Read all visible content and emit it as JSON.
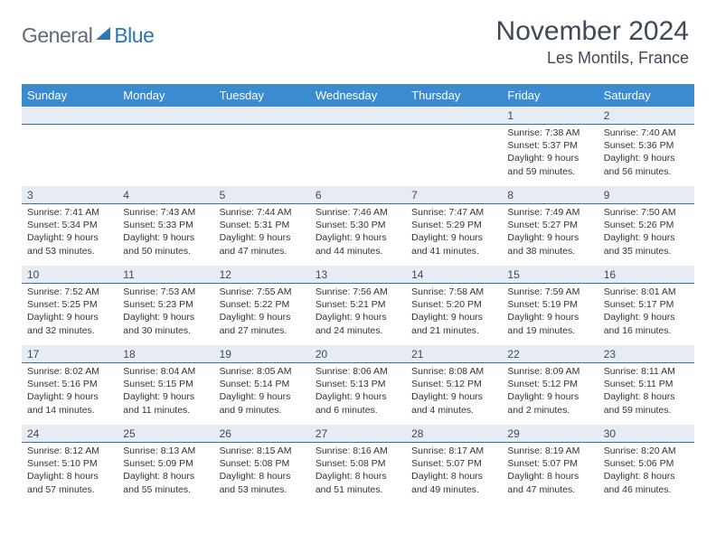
{
  "brand": {
    "text1": "General",
    "text2": "Blue",
    "text1_color": "#5d6a78",
    "text2_color": "#2e75b6",
    "icon_color": "#2e75b6"
  },
  "title": "November 2024",
  "location": "Les Montils, France",
  "colors": {
    "header_bg": "#3a8bd0",
    "header_text": "#ffffff",
    "daynum_bg": "#e6ecf2",
    "daynum_rule": "#3a6ea5",
    "body_text": "#333333",
    "title_color": "#3c4a5a",
    "page_bg": "#ffffff"
  },
  "weekdays": [
    "Sunday",
    "Monday",
    "Tuesday",
    "Wednesday",
    "Thursday",
    "Friday",
    "Saturday"
  ],
  "weeks": [
    [
      {
        "day": "",
        "lines": []
      },
      {
        "day": "",
        "lines": []
      },
      {
        "day": "",
        "lines": []
      },
      {
        "day": "",
        "lines": []
      },
      {
        "day": "",
        "lines": []
      },
      {
        "day": "1",
        "lines": [
          "Sunrise: 7:38 AM",
          "Sunset: 5:37 PM",
          "Daylight: 9 hours",
          "and 59 minutes."
        ]
      },
      {
        "day": "2",
        "lines": [
          "Sunrise: 7:40 AM",
          "Sunset: 5:36 PM",
          "Daylight: 9 hours",
          "and 56 minutes."
        ]
      }
    ],
    [
      {
        "day": "3",
        "lines": [
          "Sunrise: 7:41 AM",
          "Sunset: 5:34 PM",
          "Daylight: 9 hours",
          "and 53 minutes."
        ]
      },
      {
        "day": "4",
        "lines": [
          "Sunrise: 7:43 AM",
          "Sunset: 5:33 PM",
          "Daylight: 9 hours",
          "and 50 minutes."
        ]
      },
      {
        "day": "5",
        "lines": [
          "Sunrise: 7:44 AM",
          "Sunset: 5:31 PM",
          "Daylight: 9 hours",
          "and 47 minutes."
        ]
      },
      {
        "day": "6",
        "lines": [
          "Sunrise: 7:46 AM",
          "Sunset: 5:30 PM",
          "Daylight: 9 hours",
          "and 44 minutes."
        ]
      },
      {
        "day": "7",
        "lines": [
          "Sunrise: 7:47 AM",
          "Sunset: 5:29 PM",
          "Daylight: 9 hours",
          "and 41 minutes."
        ]
      },
      {
        "day": "8",
        "lines": [
          "Sunrise: 7:49 AM",
          "Sunset: 5:27 PM",
          "Daylight: 9 hours",
          "and 38 minutes."
        ]
      },
      {
        "day": "9",
        "lines": [
          "Sunrise: 7:50 AM",
          "Sunset: 5:26 PM",
          "Daylight: 9 hours",
          "and 35 minutes."
        ]
      }
    ],
    [
      {
        "day": "10",
        "lines": [
          "Sunrise: 7:52 AM",
          "Sunset: 5:25 PM",
          "Daylight: 9 hours",
          "and 32 minutes."
        ]
      },
      {
        "day": "11",
        "lines": [
          "Sunrise: 7:53 AM",
          "Sunset: 5:23 PM",
          "Daylight: 9 hours",
          "and 30 minutes."
        ]
      },
      {
        "day": "12",
        "lines": [
          "Sunrise: 7:55 AM",
          "Sunset: 5:22 PM",
          "Daylight: 9 hours",
          "and 27 minutes."
        ]
      },
      {
        "day": "13",
        "lines": [
          "Sunrise: 7:56 AM",
          "Sunset: 5:21 PM",
          "Daylight: 9 hours",
          "and 24 minutes."
        ]
      },
      {
        "day": "14",
        "lines": [
          "Sunrise: 7:58 AM",
          "Sunset: 5:20 PM",
          "Daylight: 9 hours",
          "and 21 minutes."
        ]
      },
      {
        "day": "15",
        "lines": [
          "Sunrise: 7:59 AM",
          "Sunset: 5:19 PM",
          "Daylight: 9 hours",
          "and 19 minutes."
        ]
      },
      {
        "day": "16",
        "lines": [
          "Sunrise: 8:01 AM",
          "Sunset: 5:17 PM",
          "Daylight: 9 hours",
          "and 16 minutes."
        ]
      }
    ],
    [
      {
        "day": "17",
        "lines": [
          "Sunrise: 8:02 AM",
          "Sunset: 5:16 PM",
          "Daylight: 9 hours",
          "and 14 minutes."
        ]
      },
      {
        "day": "18",
        "lines": [
          "Sunrise: 8:04 AM",
          "Sunset: 5:15 PM",
          "Daylight: 9 hours",
          "and 11 minutes."
        ]
      },
      {
        "day": "19",
        "lines": [
          "Sunrise: 8:05 AM",
          "Sunset: 5:14 PM",
          "Daylight: 9 hours",
          "and 9 minutes."
        ]
      },
      {
        "day": "20",
        "lines": [
          "Sunrise: 8:06 AM",
          "Sunset: 5:13 PM",
          "Daylight: 9 hours",
          "and 6 minutes."
        ]
      },
      {
        "day": "21",
        "lines": [
          "Sunrise: 8:08 AM",
          "Sunset: 5:12 PM",
          "Daylight: 9 hours",
          "and 4 minutes."
        ]
      },
      {
        "day": "22",
        "lines": [
          "Sunrise: 8:09 AM",
          "Sunset: 5:12 PM",
          "Daylight: 9 hours",
          "and 2 minutes."
        ]
      },
      {
        "day": "23",
        "lines": [
          "Sunrise: 8:11 AM",
          "Sunset: 5:11 PM",
          "Daylight: 8 hours",
          "and 59 minutes."
        ]
      }
    ],
    [
      {
        "day": "24",
        "lines": [
          "Sunrise: 8:12 AM",
          "Sunset: 5:10 PM",
          "Daylight: 8 hours",
          "and 57 minutes."
        ]
      },
      {
        "day": "25",
        "lines": [
          "Sunrise: 8:13 AM",
          "Sunset: 5:09 PM",
          "Daylight: 8 hours",
          "and 55 minutes."
        ]
      },
      {
        "day": "26",
        "lines": [
          "Sunrise: 8:15 AM",
          "Sunset: 5:08 PM",
          "Daylight: 8 hours",
          "and 53 minutes."
        ]
      },
      {
        "day": "27",
        "lines": [
          "Sunrise: 8:16 AM",
          "Sunset: 5:08 PM",
          "Daylight: 8 hours",
          "and 51 minutes."
        ]
      },
      {
        "day": "28",
        "lines": [
          "Sunrise: 8:17 AM",
          "Sunset: 5:07 PM",
          "Daylight: 8 hours",
          "and 49 minutes."
        ]
      },
      {
        "day": "29",
        "lines": [
          "Sunrise: 8:19 AM",
          "Sunset: 5:07 PM",
          "Daylight: 8 hours",
          "and 47 minutes."
        ]
      },
      {
        "day": "30",
        "lines": [
          "Sunrise: 8:20 AM",
          "Sunset: 5:06 PM",
          "Daylight: 8 hours",
          "and 46 minutes."
        ]
      }
    ]
  ]
}
